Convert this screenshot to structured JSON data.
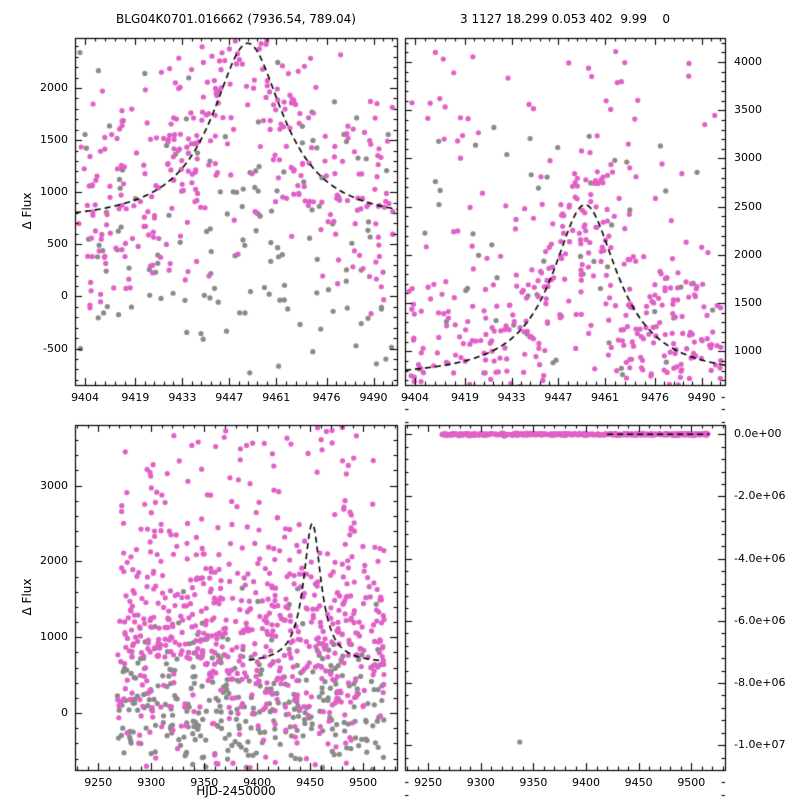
{
  "figure": {
    "background": "#ffffff"
  },
  "chart_data": {
    "type": "scatter",
    "description": "2x2 grid of microlensing light-curve panels: magenta and gray photometry points with dashed black model curves",
    "marker_radius": 2.6,
    "colors": {
      "magenta": "#e060c6",
      "gray": "#8a8a8a",
      "model": "#000000",
      "frame": "#000000"
    },
    "panels": [
      {
        "id": "top-left",
        "title": "BLG04K0701.016662 (7936.54, 789.04)",
        "ylabel": "Δ Flux",
        "xlim": [
          9401,
          9497
        ],
        "ylim": [
          -850,
          2480
        ],
        "xticks": [
          9404,
          9419,
          9433,
          9447,
          9461,
          9476,
          9490
        ],
        "xtick_labels": [
          "9404",
          "9419",
          "9433",
          "9447",
          "9461",
          "9476",
          "9490"
        ],
        "yticks": [
          -500,
          0,
          500,
          1000,
          1500,
          2000
        ],
        "ytick_labels": [
          "-500",
          "0",
          "500",
          "1000",
          "1500",
          "2000"
        ],
        "ytick_side": "left",
        "model": {
          "t0": 9452.5,
          "width": 13,
          "base": 700,
          "peak": 2430,
          "x_start": 9401,
          "x_end": 9497
        },
        "series": [
          {
            "name": "reference-points",
            "color": "gray",
            "n": 145,
            "seed": 11,
            "x_range": [
              9402,
              9496
            ],
            "y_dist": "gauss",
            "center": 500,
            "sigma": 750
          },
          {
            "name": "survey-points",
            "color": "magenta",
            "n": 300,
            "seed": 12,
            "x_range": [
              9402,
              9496
            ],
            "y_dist": "model",
            "sigma": 430
          },
          {
            "name": "survey-points-spread",
            "color": "magenta",
            "n": 55,
            "seed": 13,
            "x_range": [
              9402,
              9496
            ],
            "y_dist": "uniform",
            "y_range": [
              -100,
              2400
            ]
          }
        ]
      },
      {
        "id": "top-right",
        "title": "3 1127 18.299 0.053 402  9.99    0",
        "xlim": [
          9401,
          9497
        ],
        "ylim": [
          650,
          4250
        ],
        "xticks": [
          9404,
          9419,
          9433,
          9447,
          9461,
          9476,
          9490
        ],
        "xtick_labels": [
          "9404",
          "9419",
          "9433",
          "9447",
          "9461",
          "9476",
          "9490"
        ],
        "yticks": [
          1000,
          1500,
          2000,
          2500,
          3000,
          3500,
          4000
        ],
        "ytick_labels": [
          "1000",
          "1500",
          "2000",
          "2500",
          "3000",
          "3500",
          "4000"
        ],
        "ytick_side": "right",
        "model": {
          "t0": 9455,
          "width": 12,
          "base": 720,
          "peak": 2520,
          "x_start": 9401,
          "x_end": 9497
        },
        "series": [
          {
            "name": "reference-points",
            "color": "gray",
            "n": 55,
            "seed": 21,
            "x_range": [
              9402,
              9496
            ],
            "y_dist": "uniform",
            "y_range": [
              750,
              3400
            ]
          },
          {
            "name": "survey-points",
            "color": "magenta",
            "n": 340,
            "seed": 22,
            "x_range": [
              9402,
              9496
            ],
            "y_dist": "model",
            "sigma": 480
          },
          {
            "name": "survey-points-spread",
            "color": "magenta",
            "n": 115,
            "seed": 23,
            "x_range": [
              9402,
              9496
            ],
            "y_dist": "uniform",
            "y_range": [
              750,
              4150
            ]
          }
        ]
      },
      {
        "id": "bottom-left",
        "ylabel": "Δ Flux",
        "xlabel": "HJD-2450000",
        "xlim": [
          9228,
          9532
        ],
        "ylim": [
          -750,
          3800
        ],
        "xticks": [
          9250,
          9300,
          9350,
          9400,
          9450,
          9500
        ],
        "xtick_labels": [
          "9250",
          "9300",
          "9350",
          "9400",
          "9450",
          "9500"
        ],
        "yticks": [
          0,
          1000,
          2000,
          3000
        ],
        "ytick_labels": [
          "0",
          "1000",
          "2000",
          "3000"
        ],
        "ytick_side": "left",
        "model": {
          "t0": 9452,
          "width": 10,
          "base": 650,
          "peak": 2500,
          "x_start": 9392,
          "x_end": 9516
        },
        "series": [
          {
            "name": "reference-points",
            "color": "gray",
            "n": 340,
            "seed": 31,
            "x_range": [
              9268,
              9520
            ],
            "y_dist": "gauss",
            "center": 150,
            "sigma": 520
          },
          {
            "name": "survey-points",
            "color": "magenta",
            "n": 660,
            "seed": 32,
            "x_range": [
              9268,
              9520
            ],
            "y_dist": "gauss",
            "center": 1050,
            "sigma": 780
          },
          {
            "name": "survey-points-high",
            "color": "magenta",
            "n": 55,
            "seed": 33,
            "x_range": [
              9285,
              9520
            ],
            "y_dist": "uniform",
            "y_range": [
              2400,
              3780
            ]
          }
        ]
      },
      {
        "id": "bottom-right",
        "xlim": [
          9228,
          9532
        ],
        "ylim": [
          -10800000,
          300000
        ],
        "xticks": [
          9250,
          9300,
          9350,
          9400,
          9450,
          9500
        ],
        "xtick_labels": [
          "9250",
          "9300",
          "9350",
          "9400",
          "9450",
          "9500"
        ],
        "yticks": [
          0,
          -2000000,
          -4000000,
          -6000000,
          -8000000,
          -10000000
        ],
        "ytick_labels": [
          "0.0e+00",
          "-2.0e+06",
          "-4.0e+06",
          "-6.0e+06",
          "-8.0e+06",
          "-1.0e+07"
        ],
        "ytick_side": "right",
        "model": {
          "t0": 9450,
          "width": 10,
          "base": 0,
          "peak": 0,
          "x_start": 9420,
          "x_end": 9517
        },
        "series": [
          {
            "name": "survey-points-flat",
            "color": "magenta",
            "n": 480,
            "seed": 41,
            "x_range": [
              9263,
              9516
            ],
            "y_dist": "gauss",
            "center": 0,
            "sigma": 16000
          },
          {
            "name": "reference-outlier",
            "color": "gray",
            "points": [
              [
                9337,
                -9900000
              ]
            ]
          }
        ]
      }
    ]
  }
}
